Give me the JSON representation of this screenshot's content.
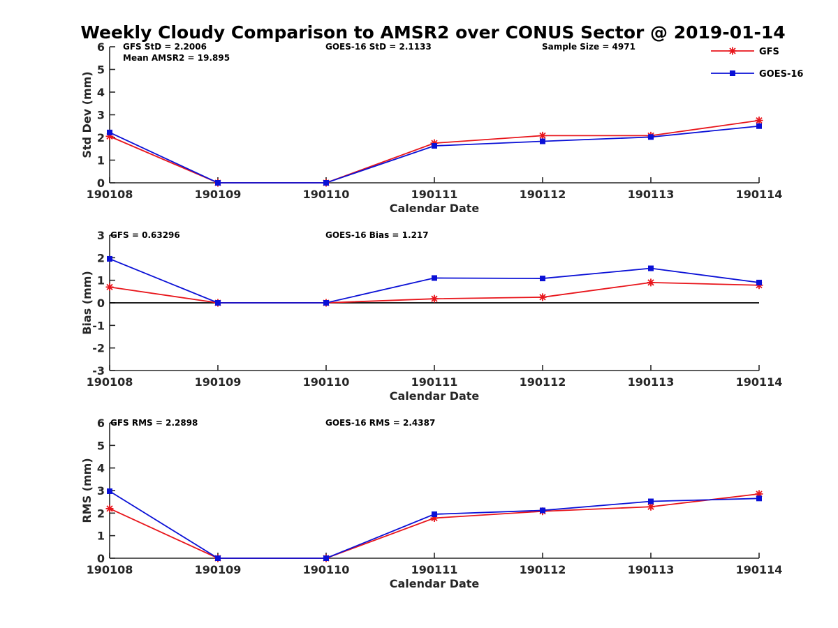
{
  "title": "Weekly Cloudy Comparison to AMSR2 over CONUS Sector @ 2019-01-14",
  "colors": {
    "GFS": "#e8151b",
    "GOES-16": "#0a10d6",
    "axis": "#262626",
    "zero_line": "#000000"
  },
  "legend": {
    "placement": "top-right",
    "entries": [
      "GFS",
      "GOES-16"
    ]
  },
  "chart_data": [
    {
      "type": "line",
      "id": "std",
      "categories": [
        "190108",
        "190109",
        "190110",
        "190111",
        "190112",
        "190113",
        "190114"
      ],
      "series": [
        {
          "name": "GFS",
          "marker": "asterisk",
          "values": [
            2.05,
            0.0,
            0.0,
            1.75,
            2.08,
            2.08,
            2.75
          ]
        },
        {
          "name": "GOES-16",
          "marker": "square",
          "values": [
            2.22,
            0.0,
            0.0,
            1.63,
            1.83,
            2.02,
            2.5
          ]
        }
      ],
      "xlabel": "Calendar Date",
      "ylabel": "Std Dev (mm)",
      "ylim": [
        0,
        6
      ],
      "yticks": [
        "0",
        "1",
        "2",
        "3",
        "4",
        "5",
        "6"
      ],
      "zero_line": false,
      "annotations": {
        "left": "GFS StD = 2.2006",
        "left2": "Mean AMSR2 = 19.895",
        "middle": "GOES-16 StD = 2.1133",
        "right": "Sample Size = 4971"
      }
    },
    {
      "type": "line",
      "id": "bias",
      "categories": [
        "190108",
        "190109",
        "190110",
        "190111",
        "190112",
        "190113",
        "190114"
      ],
      "series": [
        {
          "name": "GFS",
          "marker": "asterisk",
          "values": [
            0.7,
            0.0,
            0.0,
            0.18,
            0.25,
            0.9,
            0.78
          ]
        },
        {
          "name": "GOES-16",
          "marker": "square",
          "values": [
            1.95,
            0.0,
            0.0,
            1.1,
            1.08,
            1.53,
            0.9
          ]
        }
      ],
      "xlabel": "Calendar Date",
      "ylabel": "Bias (mm)",
      "ylim": [
        -3,
        3
      ],
      "yticks": [
        "-3",
        "-2",
        "-1",
        "0",
        "1",
        "2",
        "3"
      ],
      "zero_line": true,
      "annotations": {
        "left": "GFS = 0.63296",
        "middle": "GOES-16 Bias  = 1.217"
      }
    },
    {
      "type": "line",
      "id": "rms",
      "categories": [
        "190108",
        "190109",
        "190110",
        "190111",
        "190112",
        "190113",
        "190114"
      ],
      "series": [
        {
          "name": "GFS",
          "marker": "asterisk",
          "values": [
            2.2,
            0.0,
            0.0,
            1.78,
            2.08,
            2.28,
            2.85
          ]
        },
        {
          "name": "GOES-16",
          "marker": "square",
          "values": [
            2.97,
            0.0,
            0.0,
            1.95,
            2.12,
            2.52,
            2.65
          ]
        }
      ],
      "xlabel": "Calendar Date",
      "ylabel": "RMS (mm)",
      "ylim": [
        0,
        6
      ],
      "yticks": [
        "0",
        "1",
        "2",
        "3",
        "4",
        "5",
        "6"
      ],
      "zero_line": false,
      "annotations": {
        "left": "GFS RMS = 2.2898",
        "middle": "GOES-16 RMS = 2.4387"
      }
    }
  ]
}
